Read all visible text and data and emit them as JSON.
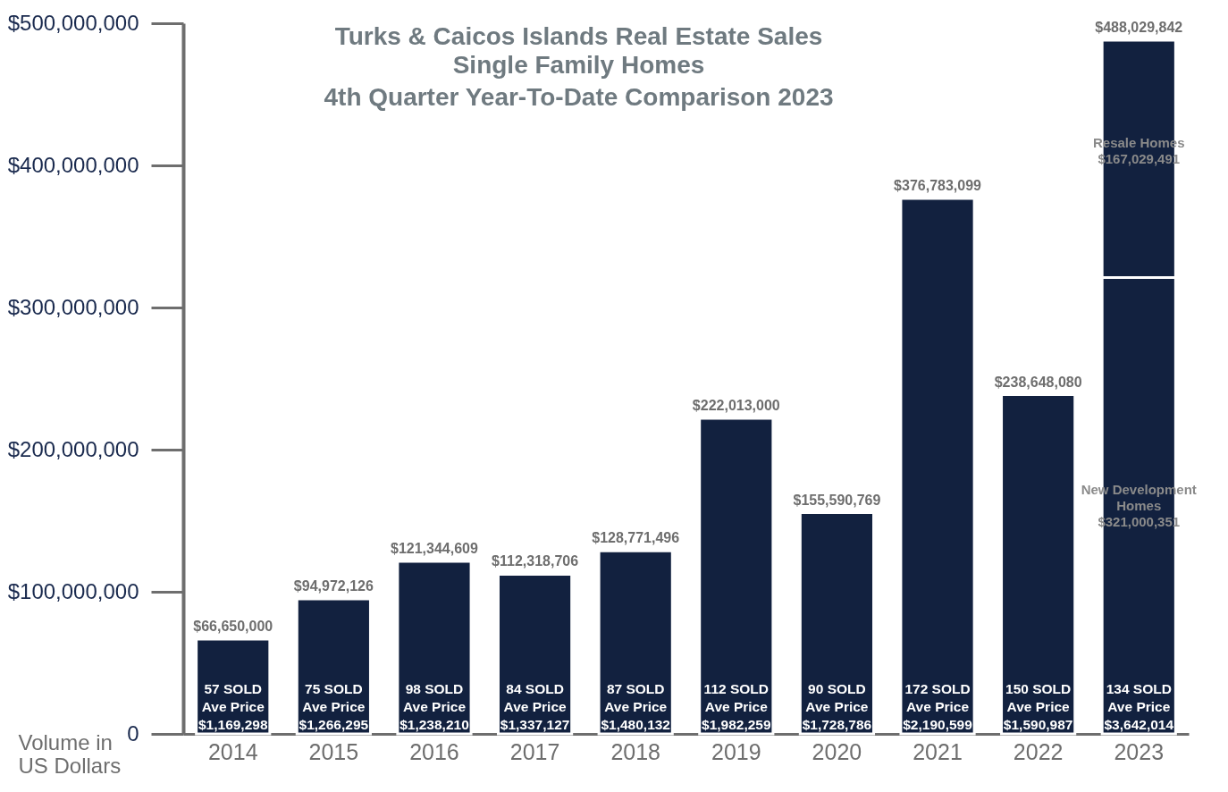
{
  "chart_data": {
    "type": "bar",
    "title": "Turks & Caicos Islands Real Estate Sales",
    "subtitle": "Single Family Homes\n4th Quarter Year-To-Date Comparison 2023",
    "ylabel": "Volume in US Dollars",
    "categories": [
      "2014",
      "2015",
      "2016",
      "2017",
      "2018",
      "2019",
      "2020",
      "2021",
      "2022",
      "2023"
    ],
    "stacked": true,
    "series": [
      {
        "name": "New Development Homes",
        "color": "#12213f",
        "values": [
          66650000,
          94972126,
          121344609,
          112318706,
          128771496,
          222013000,
          155590769,
          376783099,
          238648080,
          321000351
        ],
        "value_labels": [
          "$66,650,000",
          "$94,972,126",
          "$121,344,609",
          "$112,318,706",
          "$128,771,496",
          "$222,013,000",
          "$155,590,769",
          "$376,783,099",
          "$238,648,080",
          "$321,000,351"
        ]
      },
      {
        "name": "Resale Homes",
        "color": "#12213f",
        "values": [
          null,
          null,
          null,
          null,
          null,
          null,
          null,
          null,
          null,
          167029491
        ],
        "value_labels": [
          null,
          null,
          null,
          null,
          null,
          null,
          null,
          null,
          null,
          "$167,029,491"
        ]
      }
    ],
    "totals": [
      null,
      null,
      null,
      null,
      null,
      null,
      null,
      null,
      null,
      "$488,029,842"
    ],
    "ylim": [
      0,
      500000000
    ],
    "yticks": [
      0,
      {
        "value": 100000000,
        "label": "$100,000,000"
      },
      {
        "value": 200000000,
        "label": "$200,000,000"
      },
      {
        "value": 300000000,
        "label": "$300,000,000"
      },
      {
        "value": 400000000,
        "label": "$400,000,000"
      },
      {
        "value": 500000000,
        "label": "$500,000,000"
      }
    ],
    "grid": false,
    "legend": false,
    "annotations": [
      "57 SOLD\nAve Price\n$1,169,298",
      "75 SOLD\nAve Price\n$1,266,295",
      "98 SOLD\nAve Price\n$1,238,210",
      "84 SOLD\nAve Price\n$1,337,127",
      "87 SOLD\nAve Price\n$1,480,132",
      "112 SOLD\nAve Price\n$1,982,259",
      "90 SOLD\nAve Price\n$1,728,786",
      "172 SOLD\nAve Price\n$2,190,599",
      "150 SOLD\nAve Price\n$1,590,987",
      "134 SOLD\nAve Price\n$3,642,014"
    ]
  }
}
